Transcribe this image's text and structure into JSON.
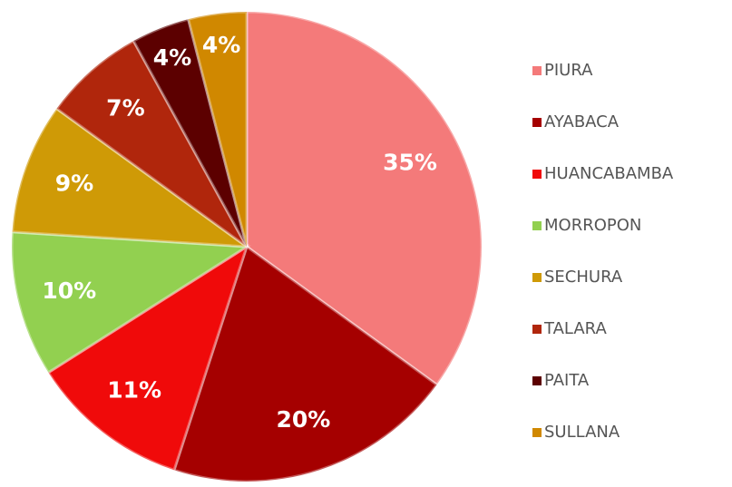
{
  "chart_data": {
    "type": "pie",
    "categories": [
      "PIURA",
      "AYABACA",
      "HUANCABAMBA",
      "MORROPON",
      "SECHURA",
      "TALARA",
      "PAITA",
      "SULLANA"
    ],
    "values": [
      35,
      20,
      11,
      10,
      9,
      7,
      4,
      4
    ],
    "value_labels": [
      "35%",
      "20%",
      "11%",
      "10%",
      "9%",
      "7%",
      "4%",
      "4%"
    ],
    "colors": [
      "#f47a7a",
      "#a50000",
      "#f00a0a",
      "#92d050",
      "#cf9a06",
      "#b0260c",
      "#5c0000",
      "#d08800"
    ],
    "legend": "right"
  }
}
